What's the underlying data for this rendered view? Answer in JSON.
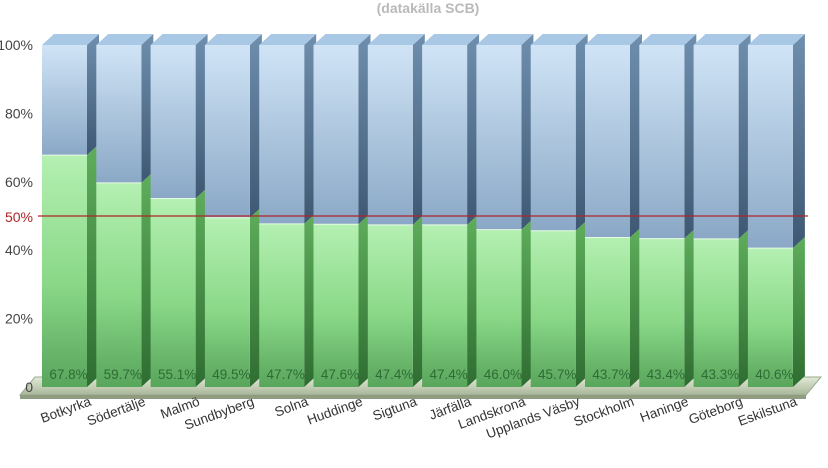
{
  "chart_data": {
    "type": "bar",
    "stacked": "percent",
    "subtitle": "(datakälla SCB)",
    "categories": [
      "Botkyrka",
      "Södertälje",
      "Malmö",
      "Sundbyberg",
      "Solna",
      "Huddinge",
      "Sigtuna",
      "Järfälla",
      "Landskrona",
      "Upplands Väsby",
      "Stockholm",
      "Haninge",
      "Göteborg",
      "Eskilstuna"
    ],
    "values": [
      67.8,
      59.7,
      55.1,
      49.5,
      47.7,
      47.6,
      47.4,
      47.4,
      46.0,
      45.7,
      43.7,
      43.4,
      43.3,
      40.6
    ],
    "value_labels": [
      "67.8%",
      "59.7%",
      "55.1%",
      "49.5%",
      "47.7%",
      "47.6%",
      "47.4%",
      "47.4%",
      "46.0%",
      "45.7%",
      "43.7%",
      "43.4%",
      "43.3%",
      "40.6%"
    ],
    "ylim": [
      0,
      100
    ],
    "yticks": [
      {
        "value": 0,
        "label": "0"
      },
      {
        "value": 20,
        "label": "20%"
      },
      {
        "value": 40,
        "label": "40%"
      },
      {
        "value": 60,
        "label": "60%"
      },
      {
        "value": 80,
        "label": "80%"
      },
      {
        "value": 100,
        "label": "100%"
      }
    ],
    "reference_line": {
      "value": 50,
      "label": "50%",
      "color": "#b0242a"
    },
    "colors": {
      "lower": "#8fdc8c",
      "upper": "#9fbcd8"
    },
    "grid": false,
    "legend": "none",
    "style": "3d"
  }
}
